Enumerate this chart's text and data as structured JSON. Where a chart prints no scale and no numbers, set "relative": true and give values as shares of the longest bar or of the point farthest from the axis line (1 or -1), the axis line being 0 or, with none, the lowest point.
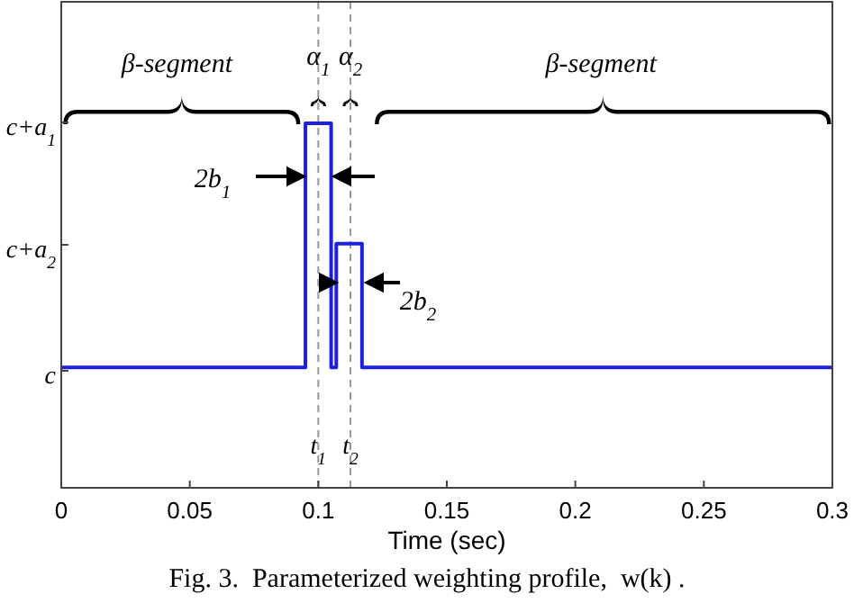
{
  "chart_data": {
    "type": "step",
    "relative": true,
    "xlabel": "Time (sec)",
    "x": [
      0,
      0.095,
      0.105,
      0.107,
      0.117,
      0.3
    ],
    "series": [
      {
        "color": "#1f1fe0",
        "values": [
          0.33,
          1,
          0.33,
          0.67,
          0.33,
          0.33
        ]
      }
    ],
    "xlim": [
      0,
      0.3
    ],
    "xticks": [
      0,
      0.05,
      0.1,
      0.15,
      0.2,
      0.25,
      0.3
    ],
    "ref_lines": [
      {
        "axis": "x",
        "value": 0.1,
        "label": "t$_{1}$",
        "color": "#999999",
        "line_style": "dashed"
      },
      {
        "axis": "x",
        "value": 0.1125,
        "label": "t$_{2}$",
        "color": "#999999",
        "line_style": "dashed"
      }
    ],
    "annotations": [
      "β-segment",
      "β-segment",
      "α$_{1}$",
      "α$_{2}$",
      "2b$_{1}$",
      "2b$_{2}$",
      "c",
      "c+a$_{2}$",
      "c+a$_{1}$",
      "Fig. 3.  Parameterized weighting profile,  w(k) ."
    ],
    "grid": false,
    "legend": false,
    "marker": "none",
    "line_style": "solid"
  }
}
